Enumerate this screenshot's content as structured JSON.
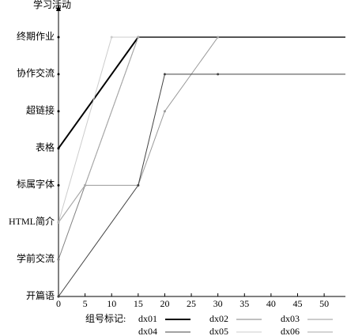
{
  "chart_data": {
    "type": "line",
    "y_title": "学习活动",
    "legend_title": "组号标记:",
    "y_categories": [
      "开篇语",
      "学前交流",
      "HTML简介",
      "标属字体",
      "表格",
      "超链接",
      "协作交流",
      "终期作业"
    ],
    "xlim": [
      0,
      54
    ],
    "xticks": [
      0,
      5,
      10,
      15,
      20,
      25,
      30,
      35,
      40,
      45,
      50
    ],
    "series": [
      {
        "name": "dx01",
        "color": "#000000",
        "x": [
          0,
          15,
          54
        ],
        "values": [
          "表格",
          "终期作业",
          "终期作业"
        ]
      },
      {
        "name": "dx02",
        "color": "#808080",
        "x": [
          0,
          15,
          54
        ],
        "values": [
          "学前交流",
          "终期作业",
          "终期作业"
        ]
      },
      {
        "name": "dx03",
        "color": "#999999",
        "x": [
          0,
          5,
          15,
          20,
          30,
          54
        ],
        "values": [
          "HTML简介",
          "标属字体",
          "标属字体",
          "超链接",
          "终期作业",
          "终期作业"
        ]
      },
      {
        "name": "dx04",
        "color": "#444444",
        "x": [
          0,
          15,
          20,
          30,
          54
        ],
        "values": [
          "开篇语",
          "标属字体",
          "协作交流",
          "协作交流",
          "协作交流"
        ]
      },
      {
        "name": "dx05",
        "color": "#cccccc",
        "x": [
          0,
          10,
          54
        ],
        "values": [
          "HTML简介",
          "终期作业",
          "终期作业"
        ]
      },
      {
        "name": "dx06",
        "color": "#aaaaaa",
        "x": [
          0,
          5,
          15,
          54
        ],
        "values": [
          "HTML简介",
          "标属字体",
          "终期作业",
          "终期作业"
        ]
      }
    ]
  }
}
